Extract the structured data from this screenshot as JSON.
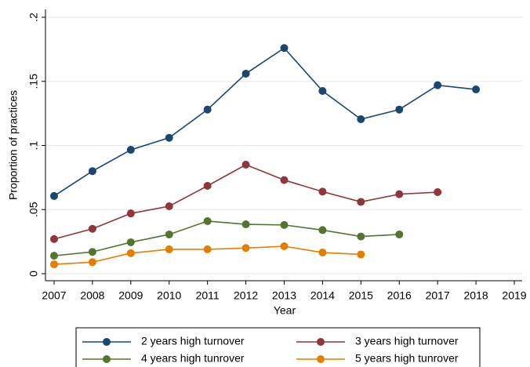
{
  "chart_data": {
    "type": "line",
    "xlabel": "Year",
    "ylabel": "Proportion of practices",
    "x": [
      2007,
      2008,
      2009,
      2010,
      2011,
      2012,
      2013,
      2014,
      2015,
      2016,
      2017,
      2018
    ],
    "series": [
      {
        "name": "2 years high turnover",
        "color": "#1a476f",
        "values": [
          0.0606,
          0.08,
          0.0966,
          0.106,
          0.128,
          0.156,
          0.176,
          0.1425,
          0.1205,
          0.128,
          0.147,
          0.1437
        ]
      },
      {
        "name": "3 years high turnover",
        "color": "#90353b",
        "values": [
          0.027,
          0.035,
          0.047,
          0.0526,
          0.0685,
          0.085,
          0.073,
          0.064,
          0.056,
          0.062,
          0.0636,
          null
        ]
      },
      {
        "name": "4 years high tunrover",
        "color": "#55752f",
        "values": [
          0.014,
          0.017,
          0.0245,
          0.0306,
          0.041,
          0.0385,
          0.038,
          0.034,
          0.029,
          0.0306,
          null,
          null
        ]
      },
      {
        "name": "5 years high tunrover",
        "color": "#e37e00",
        "values": [
          0.0073,
          0.009,
          0.016,
          0.019,
          0.019,
          0.02,
          0.0214,
          0.0165,
          0.015,
          null,
          null,
          null
        ]
      }
    ],
    "xlim": [
      2007,
      2019
    ],
    "xticks": [
      2007,
      2008,
      2009,
      2010,
      2011,
      2012,
      2013,
      2014,
      2015,
      2016,
      2017,
      2018,
      2019
    ],
    "ylim": [
      0,
      0.2
    ],
    "yticks": [
      0,
      {
        "value": 0.05,
        "label": ".05"
      },
      {
        "value": 0.1,
        "label": ".1"
      },
      {
        "value": 0.15,
        "label": ".15"
      },
      {
        "value": 0.2,
        "label": ".2"
      }
    ],
    "grid": true,
    "legend": "bottom"
  }
}
